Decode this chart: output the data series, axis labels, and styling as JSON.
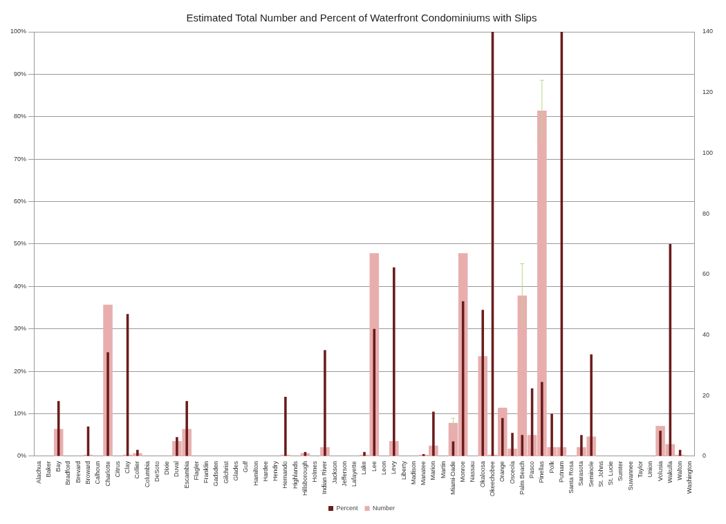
{
  "chart_data": {
    "type": "bar",
    "title": "Estimated Total Number and Percent of Waterfront Condominiums with Slips",
    "categories": [
      "Alachua",
      "Baker",
      "Bay",
      "Bradford",
      "Brevard",
      "Broward",
      "Calhoun",
      "Charlotte",
      "Citrus",
      "Clay",
      "Collier",
      "Columbia",
      "DeSoto",
      "Dixie",
      "Duval",
      "Escambia",
      "Flagler",
      "Franklin",
      "Gadsden",
      "Gilchrist",
      "Glades",
      "Gulf",
      "Hamilton",
      "Hardee",
      "Hendry",
      "Hernando",
      "Highlands",
      "Hillsborough",
      "Holmes",
      "Indian River",
      "Jackson",
      "Jefferson",
      "Lafayette",
      "Lake",
      "Lee",
      "Leon",
      "Levy",
      "Liberty",
      "Madison",
      "Manatee",
      "Marion",
      "Martin",
      "Miami-Dade",
      "Monroe",
      "Nassau",
      "Okaloosa",
      "Okeechobee",
      "Orange",
      "Osceola",
      "Palm Beach",
      "Pasco",
      "Pinellas",
      "Polk",
      "Putnam",
      "Santa Rosa",
      "Sarasota",
      "Seminole",
      "St. Johns",
      "St. Lucie",
      "Sumter",
      "Suwannee",
      "Taylor",
      "Union",
      "Volusia",
      "Wakulla",
      "Walton",
      "Washington"
    ],
    "series": [
      {
        "name": "Number",
        "color": "#e8aeae",
        "axis": "y2",
        "values": [
          0,
          0,
          9,
          0,
          0,
          0.5,
          0,
          50,
          0,
          0.5,
          1,
          0,
          0,
          0,
          5,
          9,
          0,
          0,
          0,
          0,
          0,
          0,
          0,
          0,
          0,
          0.5,
          0,
          1,
          0,
          3,
          0,
          0,
          0,
          0.5,
          67,
          0,
          5,
          0,
          0,
          0.5,
          3.5,
          0,
          11,
          67,
          0,
          33,
          0.5,
          16,
          2.5,
          53,
          7,
          114,
          3,
          3,
          0,
          3,
          6.5,
          0,
          0,
          0,
          0,
          0,
          0,
          10,
          4,
          0.5,
          0
        ],
        "errors": [
          null,
          null,
          null,
          null,
          null,
          null,
          null,
          null,
          null,
          null,
          null,
          null,
          null,
          null,
          null,
          null,
          null,
          null,
          null,
          null,
          null,
          null,
          null,
          null,
          null,
          null,
          null,
          null,
          null,
          null,
          null,
          null,
          null,
          null,
          null,
          null,
          null,
          null,
          null,
          null,
          null,
          null,
          1.5,
          null,
          null,
          null,
          null,
          null,
          null,
          10.5,
          null,
          10,
          null,
          null,
          null,
          null,
          null,
          null,
          null,
          null,
          null,
          null,
          null,
          null,
          null,
          null,
          null
        ]
      },
      {
        "name": "Percent",
        "color": "#6b1c1c",
        "values": [
          0,
          0,
          13,
          0,
          0,
          7,
          0,
          24.5,
          0,
          33.5,
          1.5,
          0,
          0,
          0,
          4.5,
          13,
          0,
          0,
          0,
          0,
          0,
          0,
          0,
          0,
          0,
          14,
          0,
          1,
          0,
          25,
          0,
          0,
          0,
          1,
          30,
          0,
          44.5,
          0,
          0,
          0.5,
          10.5,
          0,
          3.5,
          36.5,
          0,
          34.5,
          100,
          9,
          5.5,
          5,
          16,
          17.5,
          10,
          100,
          0,
          5,
          24,
          0,
          0,
          0,
          0,
          0,
          0,
          6,
          50,
          1.5,
          0
        ]
      }
    ],
    "ylim": [
      0,
      100
    ],
    "yticks": [
      {
        "value": 0,
        "label": "0%"
      },
      {
        "value": 10,
        "label": "10%"
      },
      {
        "value": 20,
        "label": "20%"
      },
      {
        "value": 30,
        "label": "30%"
      },
      {
        "value": 40,
        "label": "40%"
      },
      {
        "value": 50,
        "label": "50%"
      },
      {
        "value": 60,
        "label": "60%"
      },
      {
        "value": 70,
        "label": "70%"
      },
      {
        "value": 80,
        "label": "80%"
      },
      {
        "value": 90,
        "label": "90%"
      },
      {
        "value": 100,
        "label": "100%"
      }
    ],
    "y2lim": [
      0,
      140
    ],
    "y2ticks": [
      0,
      20,
      40,
      60,
      80,
      100,
      120,
      140
    ],
    "grid": "y",
    "legend": "bottom"
  }
}
